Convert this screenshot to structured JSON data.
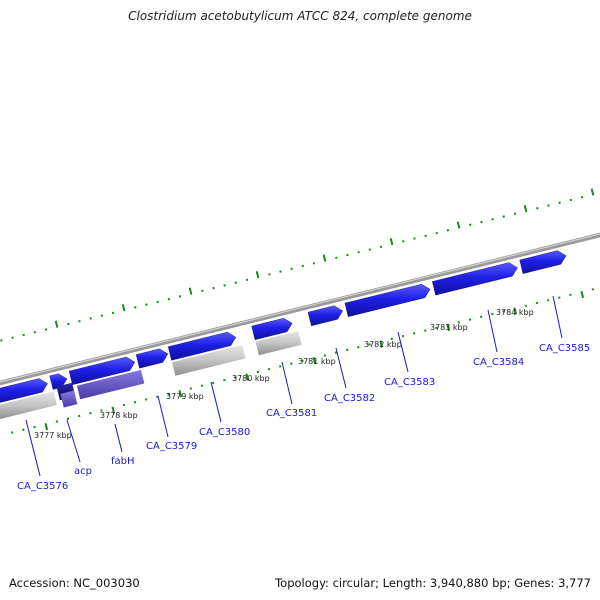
{
  "title": "Clostridium acetobutylicum ATCC 824, complete genome",
  "footer": {
    "accession": "Accession: NC_003030",
    "topology": "Topology: circular; Length: 3,940,880 bp; Genes: 3,777"
  },
  "colors": {
    "forward_gene": "#1f1fe6",
    "forward_gene_light": "#4b4bff",
    "reverse_gene": "#b8b8b8",
    "reverse_gene_dark": "#7a7a7a",
    "acp_gene": "#101080",
    "fabh_gene": "#6a5acd",
    "ticks": "#1a8a1a",
    "backbone": "#8a8a8a",
    "label_line": "#1a1acc"
  },
  "kbp_labels": [
    "3777 kbp",
    "3778 kbp",
    "3779 kbp",
    "3780 kbp",
    "3781 kbp",
    "3782 kbp",
    "3783 kbp",
    "3784 kbp"
  ],
  "gene_labels": [
    "CA_C3576",
    "acp",
    "fabH",
    "CA_C3579",
    "CA_C3580",
    "CA_C3581",
    "CA_C3582",
    "CA_C3583",
    "CA_C3584",
    "CA_C3585"
  ]
}
